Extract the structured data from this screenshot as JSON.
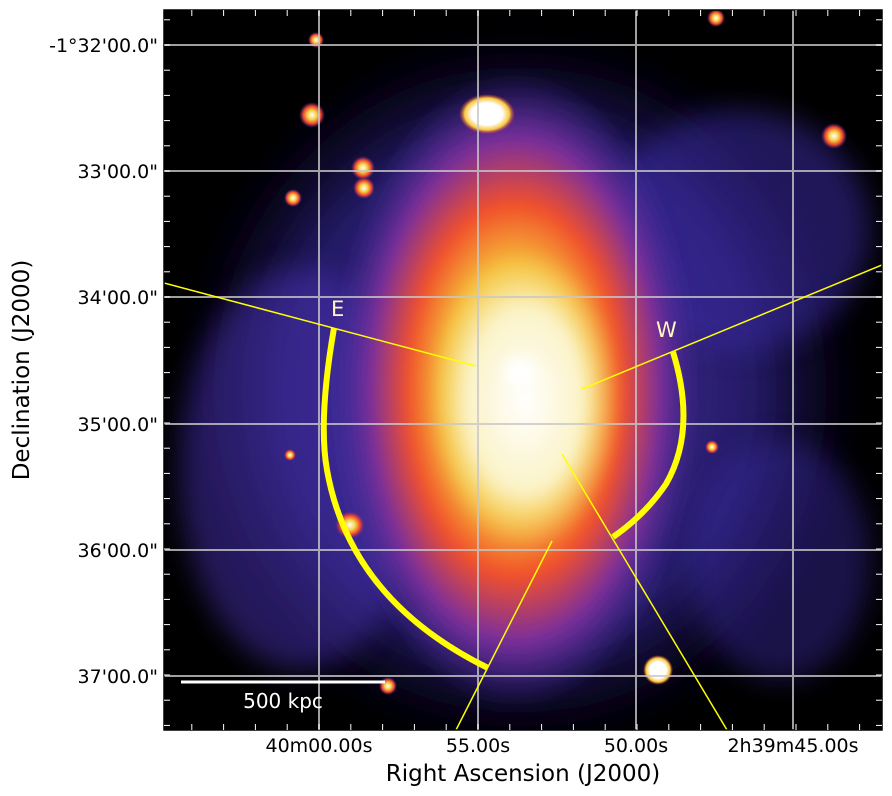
{
  "figure": {
    "xlabel": "Right Ascension (J2000)",
    "ylabel": "Declination (J2000)",
    "colormap": "black-purple-red-yellow-white",
    "grid": true,
    "colors": {
      "annotation": "#ffff00",
      "grid": "#c8c8c8",
      "scalebar": "#ffffff",
      "background": "#000000"
    }
  },
  "ticks": {
    "x": [
      "40m00.00s",
      "55.00s",
      "50.00s",
      "2h39m45.00s"
    ],
    "y": [
      "-1°32'00.0\"",
      "33'00.0\"",
      "34'00.0\"",
      "35'00.0\"",
      "36'00.0\"",
      "37'00.0\""
    ]
  },
  "annotations": {
    "east_label": "E",
    "west_label": "W",
    "scalebar_label": "500 kpc"
  }
}
